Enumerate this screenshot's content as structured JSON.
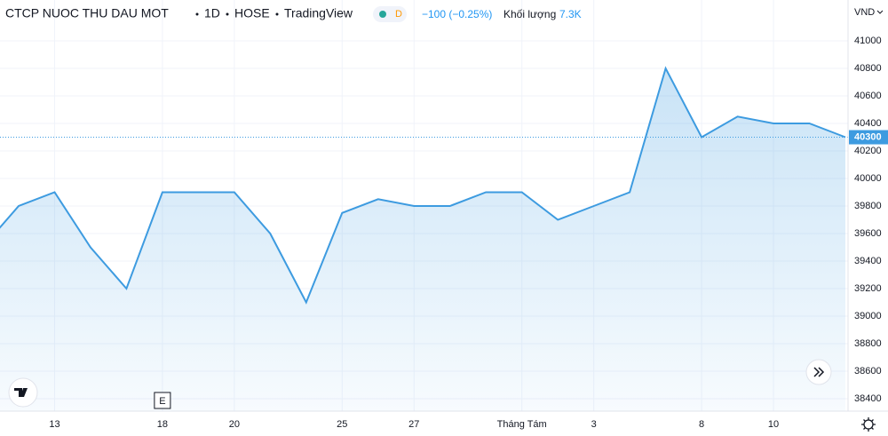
{
  "chart_data": {
    "type": "area",
    "symbol": "CTCP NUOC THU DAU MOT",
    "interval": "1D",
    "exchange": "HOSE",
    "source": "TradingView",
    "session_badge": "D",
    "change": "−100 (−0.25%)",
    "volume_label": "Khối lượng",
    "volume": "7.3K",
    "currency": "VND",
    "event_marker": "E",
    "color": "#3d9be0",
    "grid": true,
    "categories": [
      null,
      null,
      "13",
      null,
      null,
      "18",
      null,
      "20",
      null,
      null,
      "25",
      null,
      "27",
      null,
      null,
      "Tháng Tám",
      null,
      "3",
      null,
      null,
      "8",
      null,
      "10",
      null,
      null
    ],
    "values": [
      39500,
      39800,
      39900,
      39500,
      39200,
      39900,
      39900,
      39900,
      39600,
      39100,
      39750,
      39850,
      39800,
      39800,
      39900,
      39900,
      39700,
      39800,
      39900,
      40800,
      40300,
      40450,
      40400,
      40400,
      40300
    ],
    "ylim": [
      38310,
      41297
    ],
    "yticks": [
      38400,
      38600,
      38800,
      39000,
      39200,
      39400,
      39600,
      39800,
      40000,
      40200,
      40400,
      40600,
      40800,
      41000
    ]
  }
}
